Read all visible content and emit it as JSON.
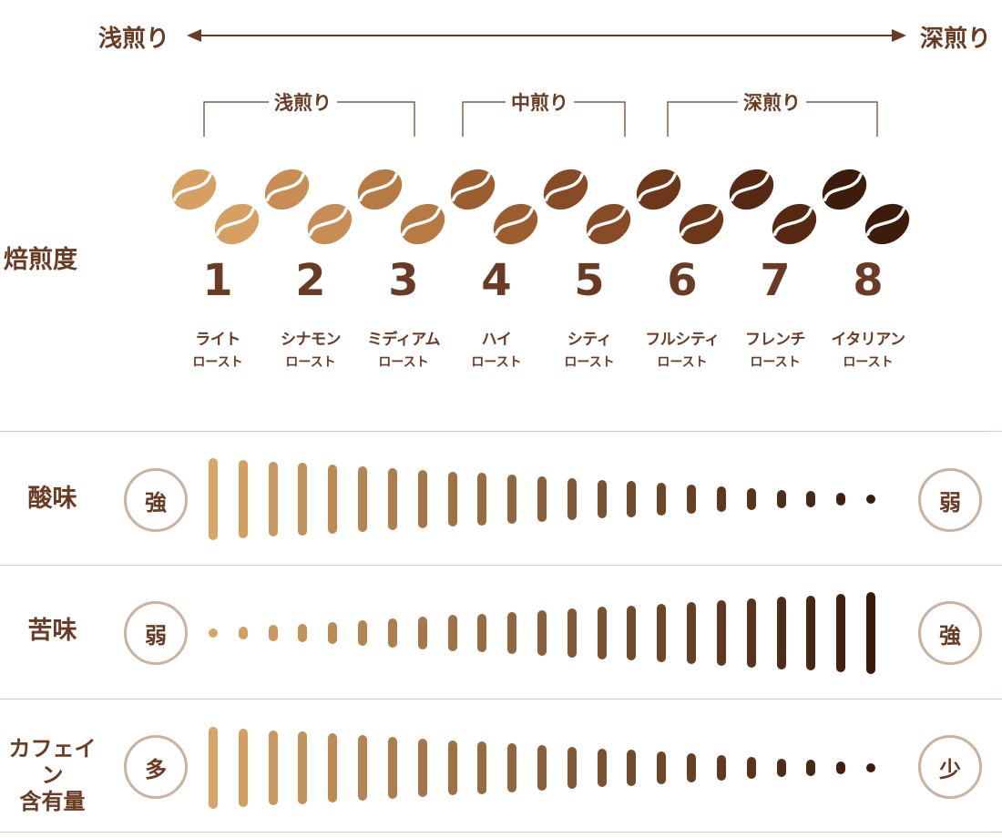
{
  "scale": {
    "left": "浅煎り",
    "right": "深煎り"
  },
  "groups": [
    {
      "label": "浅煎り"
    },
    {
      "label": "中煎り"
    },
    {
      "label": "深煎り"
    }
  ],
  "roast_row_label": "焙煎度",
  "roasts": [
    {
      "number": "1",
      "name": "ライト",
      "sub": "ロースト",
      "color": "#d6a063"
    },
    {
      "number": "2",
      "name": "シナモン",
      "sub": "ロースト",
      "color": "#c88d55"
    },
    {
      "number": "3",
      "name": "ミディアム",
      "sub": "ロースト",
      "color": "#b77a43"
    },
    {
      "number": "4",
      "name": "ハイ",
      "sub": "ロースト",
      "color": "#9d5e2f"
    },
    {
      "number": "5",
      "name": "シティ",
      "sub": "ロースト",
      "color": "#874b25"
    },
    {
      "number": "6",
      "name": "フルシティ",
      "sub": "ロースト",
      "color": "#6d3819"
    },
    {
      "number": "7",
      "name": "フレンチ",
      "sub": "ロースト",
      "color": "#562912"
    },
    {
      "number": "8",
      "name": "イタリアン",
      "sub": "ロースト",
      "color": "#3e1c0c"
    }
  ],
  "rows": [
    {
      "label": "酸味",
      "left": "強",
      "right": "弱",
      "trend": "decreasing"
    },
    {
      "label": "苦味",
      "left": "弱",
      "right": "強",
      "trend": "increasing"
    },
    {
      "label": "カフェイン\n含有量",
      "left": "多",
      "right": "少",
      "trend": "decreasing"
    }
  ],
  "colors": {
    "text": "#6b3a22",
    "light_bar": "#d9a466",
    "dark_bar": "#3a1a0b",
    "circle_border": "#c9b29e"
  }
}
